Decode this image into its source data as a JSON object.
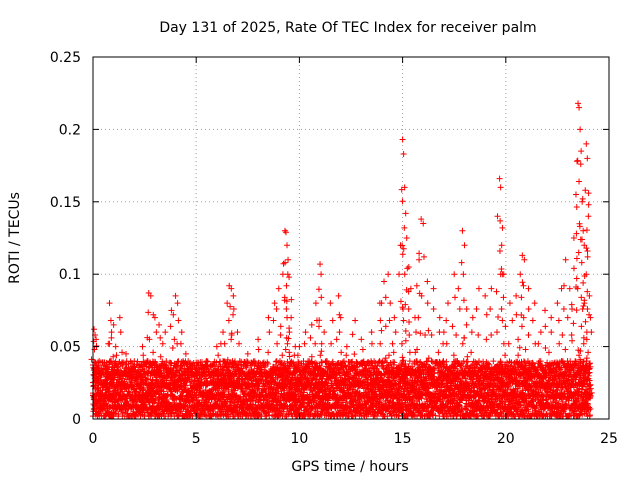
{
  "chart_data": {
    "type": "scatter",
    "title": "Day 131 of 2025, Rate Of TEC Index for receiver palm",
    "xlabel": "GPS time / hours",
    "ylabel": "ROTI / TECUs",
    "xlim": [
      0,
      25
    ],
    "ylim": [
      0,
      0.25
    ],
    "xticks": [
      0,
      5,
      10,
      15,
      20,
      25
    ],
    "xtick_labels": [
      "0",
      "5",
      "10",
      "15",
      "20",
      "25"
    ],
    "yticks": [
      0,
      0.05,
      0.1,
      0.15,
      0.2,
      0.25
    ],
    "ytick_labels": [
      "0",
      "0.05",
      "0.1",
      "0.15",
      "0.2",
      "0.25"
    ],
    "grid": true,
    "marker": "+",
    "color": "#ff0000",
    "series": [
      {
        "name": "ROTI",
        "points": [
          [
            0.05,
            0.062
          ],
          [
            0.1,
            0.058
          ],
          [
            0.15,
            0.055
          ],
          [
            0.3,
            0.04
          ],
          [
            0.6,
            0.035
          ],
          [
            0.8,
            0.08
          ],
          [
            0.9,
            0.06
          ],
          [
            1.0,
            0.065
          ],
          [
            1.1,
            0.05
          ],
          [
            1.3,
            0.07
          ],
          [
            1.6,
            0.045
          ],
          [
            2.0,
            0.04
          ],
          [
            2.4,
            0.05
          ],
          [
            2.7,
            0.087
          ],
          [
            2.8,
            0.085
          ],
          [
            3.0,
            0.07
          ],
          [
            3.2,
            0.065
          ],
          [
            3.5,
            0.06
          ],
          [
            3.8,
            0.075
          ],
          [
            4.0,
            0.085
          ],
          [
            4.1,
            0.08
          ],
          [
            4.3,
            0.06
          ],
          [
            4.5,
            0.045
          ],
          [
            5.0,
            0.035
          ],
          [
            5.5,
            0.04
          ],
          [
            6.0,
            0.05
          ],
          [
            6.3,
            0.06
          ],
          [
            6.5,
            0.08
          ],
          [
            6.6,
            0.092
          ],
          [
            6.7,
            0.09
          ],
          [
            6.8,
            0.085
          ],
          [
            7.0,
            0.06
          ],
          [
            7.5,
            0.045
          ],
          [
            8.0,
            0.055
          ],
          [
            8.5,
            0.07
          ],
          [
            8.8,
            0.08
          ],
          [
            9.0,
            0.09
          ],
          [
            9.2,
            0.1
          ],
          [
            9.3,
            0.13
          ],
          [
            9.35,
            0.129
          ],
          [
            9.4,
            0.12
          ],
          [
            9.45,
            0.11
          ],
          [
            9.5,
            0.098
          ],
          [
            9.6,
            0.07
          ],
          [
            9.8,
            0.05
          ],
          [
            10.0,
            0.05
          ],
          [
            10.3,
            0.06
          ],
          [
            10.6,
            0.065
          ],
          [
            10.8,
            0.08
          ],
          [
            11.0,
            0.107
          ],
          [
            11.05,
            0.1
          ],
          [
            11.2,
            0.06
          ],
          [
            11.5,
            0.08
          ],
          [
            11.9,
            0.085
          ],
          [
            12.0,
            0.07
          ],
          [
            12.3,
            0.05
          ],
          [
            12.7,
            0.068
          ],
          [
            13.0,
            0.055
          ],
          [
            13.5,
            0.06
          ],
          [
            13.9,
            0.08
          ],
          [
            14.1,
            0.095
          ],
          [
            14.3,
            0.1
          ],
          [
            14.4,
            0.08
          ],
          [
            14.6,
            0.07
          ],
          [
            14.9,
            0.12
          ],
          [
            15.0,
            0.193
          ],
          [
            15.05,
            0.183
          ],
          [
            15.1,
            0.16
          ],
          [
            15.15,
            0.142
          ],
          [
            15.2,
            0.125
          ],
          [
            15.3,
            0.105
          ],
          [
            15.4,
            0.09
          ],
          [
            15.6,
            0.07
          ],
          [
            15.8,
            0.11
          ],
          [
            15.9,
            0.138
          ],
          [
            16.0,
            0.135
          ],
          [
            16.2,
            0.095
          ],
          [
            16.5,
            0.09
          ],
          [
            16.8,
            0.07
          ],
          [
            17.0,
            0.06
          ],
          [
            17.2,
            0.08
          ],
          [
            17.5,
            0.1
          ],
          [
            17.7,
            0.09
          ],
          [
            17.9,
            0.13
          ],
          [
            18.0,
            0.12
          ],
          [
            18.1,
            0.065
          ],
          [
            18.4,
            0.07
          ],
          [
            18.7,
            0.09
          ],
          [
            19.0,
            0.085
          ],
          [
            19.3,
            0.09
          ],
          [
            19.6,
            0.14
          ],
          [
            19.7,
            0.166
          ],
          [
            19.75,
            0.16
          ],
          [
            19.8,
            0.12
          ],
          [
            19.9,
            0.1
          ],
          [
            20.2,
            0.08
          ],
          [
            20.5,
            0.085
          ],
          [
            20.7,
            0.1
          ],
          [
            20.8,
            0.113
          ],
          [
            20.9,
            0.11
          ],
          [
            21.1,
            0.09
          ],
          [
            21.4,
            0.08
          ],
          [
            21.7,
            0.06
          ],
          [
            21.9,
            0.075
          ],
          [
            22.2,
            0.07
          ],
          [
            22.5,
            0.08
          ],
          [
            22.7,
            0.09
          ],
          [
            22.9,
            0.11
          ],
          [
            23.1,
            0.09
          ],
          [
            23.3,
            0.125
          ],
          [
            23.4,
            0.155
          ],
          [
            23.45,
            0.178
          ],
          [
            23.5,
            0.218
          ],
          [
            23.55,
            0.215
          ],
          [
            23.6,
            0.2
          ],
          [
            23.65,
            0.185
          ],
          [
            23.7,
            0.15
          ],
          [
            23.75,
            0.13
          ],
          [
            23.8,
            0.12
          ],
          [
            23.85,
            0.158
          ],
          [
            23.9,
            0.19
          ],
          [
            23.95,
            0.18
          ],
          [
            24.0,
            0.14
          ],
          [
            24.05,
            0.085
          ],
          [
            24.1,
            0.07
          ]
        ],
        "dense_band": {
          "description": "baseline scatter",
          "x_step": 0.02,
          "baseline_values": [
            0.005,
            0.012,
            0.02,
            0.028,
            0.035
          ]
        }
      }
    ]
  }
}
